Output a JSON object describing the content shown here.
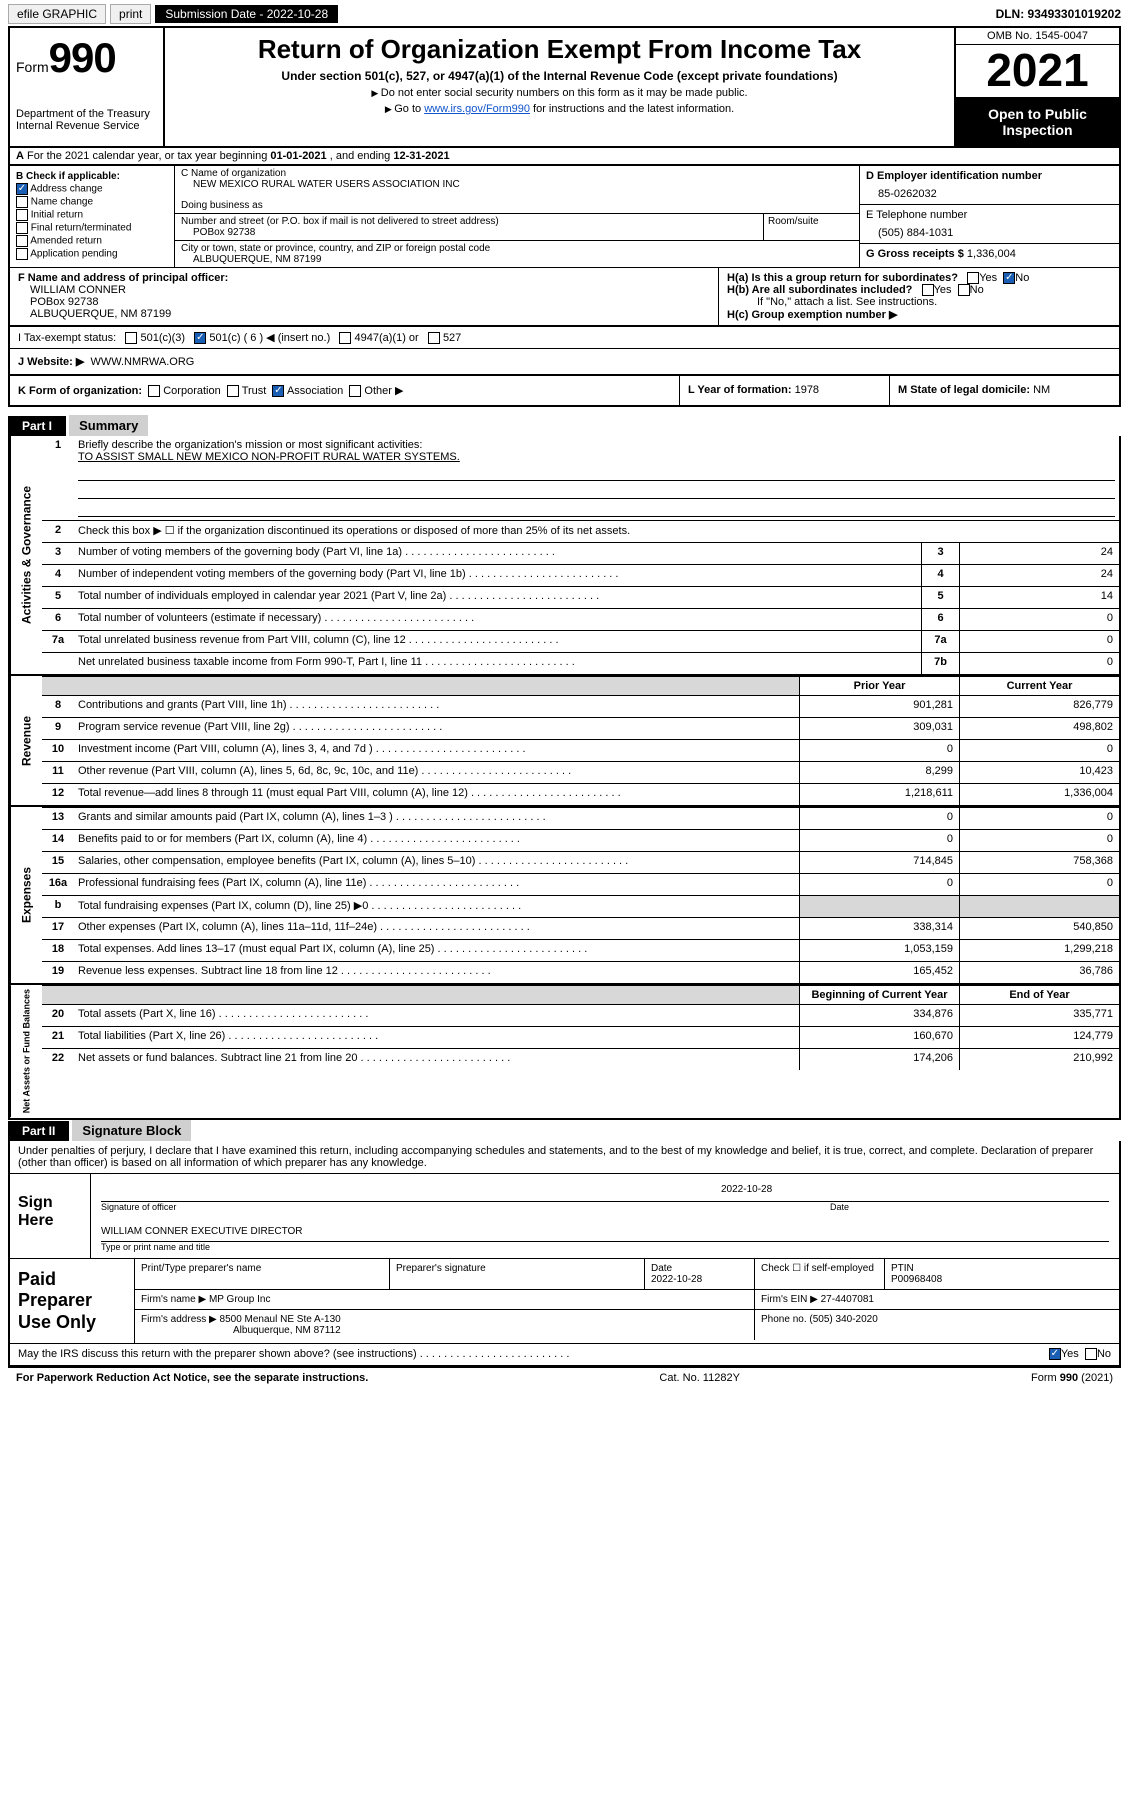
{
  "topbar": {
    "efile": "efile GRAPHIC",
    "print": "print",
    "submission": "Submission Date - 2022-10-28",
    "dln": "DLN: 93493301019202"
  },
  "header": {
    "form": "Form",
    "formno": "990",
    "title": "Return of Organization Exempt From Income Tax",
    "sub": "Under section 501(c), 527, or 4947(a)(1) of the Internal Revenue Code (except private foundations)",
    "note1": "Do not enter social security numbers on this form as it may be made public.",
    "note2_pre": "Go to ",
    "note2_link": "www.irs.gov/Form990",
    "note2_post": " for instructions and the latest information.",
    "dept": "Department of the Treasury",
    "irs": "Internal Revenue Service",
    "omb": "OMB No. 1545-0047",
    "year": "2021",
    "open": "Open to Public Inspection"
  },
  "row_a": {
    "label": "A",
    "text_pre": "For the 2021 calendar year, or tax year beginning ",
    "begin": "01-01-2021",
    "mid": " , and ending ",
    "end": "12-31-2021"
  },
  "col_b": {
    "label": "B Check if applicable:",
    "items": [
      "Address change",
      "Name change",
      "Initial return",
      "Final return/terminated",
      "Amended return",
      "Application pending"
    ],
    "checked": [
      true,
      false,
      false,
      false,
      false,
      false
    ]
  },
  "col_c": {
    "name_label": "C Name of organization",
    "name": "NEW MEXICO RURAL WATER USERS ASSOCIATION INC",
    "dba_label": "Doing business as",
    "dba": "",
    "street_label": "Number and street (or P.O. box if mail is not delivered to street address)",
    "room_label": "Room/suite",
    "street": "POBox 92738",
    "city_label": "City or town, state or province, country, and ZIP or foreign postal code",
    "city": "ALBUQUERQUE, NM  87199"
  },
  "col_d": {
    "ein_label": "D Employer identification number",
    "ein": "85-0262032",
    "phone_label": "E Telephone number",
    "phone": "(505) 884-1031",
    "gross_label": "G Gross receipts $",
    "gross": "1,336,004"
  },
  "officer": {
    "f_label": "F Name and address of principal officer:",
    "name": "WILLIAM CONNER",
    "street": "POBox 92738",
    "city": "ALBUQUERQUE, NM  87199"
  },
  "h": {
    "a": "H(a)  Is this a group return for subordinates?",
    "a_yes": "Yes",
    "a_no": "No",
    "b": "H(b)  Are all subordinates included?",
    "b_yes": "Yes",
    "b_no": "No",
    "b_note": "If \"No,\" attach a list. See instructions.",
    "c": "H(c)  Group exemption number ▶"
  },
  "i": {
    "label": "I    Tax-exempt status:",
    "opts": [
      "501(c)(3)",
      "501(c) ( 6 ) ◀ (insert no.)",
      "4947(a)(1) or",
      "527"
    ]
  },
  "j": {
    "label": "J    Website: ▶",
    "url": "WWW.NMRWA.ORG"
  },
  "k": {
    "label": "K Form of organization:",
    "opts": [
      "Corporation",
      "Trust",
      "Association",
      "Other ▶"
    ],
    "checked": [
      false,
      false,
      true,
      false
    ]
  },
  "l": {
    "label": "L Year of formation:",
    "val": "1978"
  },
  "m": {
    "label": "M State of legal domicile:",
    "val": "NM"
  },
  "part1": {
    "hdr": "Part I",
    "title": "Summary"
  },
  "summary_lines": {
    "l1": {
      "num": "1",
      "text": "Briefly describe the organization's mission or most significant activities:",
      "mission": "TO ASSIST SMALL NEW MEXICO NON-PROFIT RURAL WATER SYSTEMS."
    },
    "l2": {
      "num": "2",
      "text": "Check this box ▶ ☐  if the organization discontinued its operations or disposed of more than 25% of its net assets."
    },
    "l3": {
      "num": "3",
      "text": "Number of voting members of the governing body (Part VI, line 1a)",
      "box": "3",
      "val": "24"
    },
    "l4": {
      "num": "4",
      "text": "Number of independent voting members of the governing body (Part VI, line 1b)",
      "box": "4",
      "val": "24"
    },
    "l5": {
      "num": "5",
      "text": "Total number of individuals employed in calendar year 2021 (Part V, line 2a)",
      "box": "5",
      "val": "14"
    },
    "l6": {
      "num": "6",
      "text": "Total number of volunteers (estimate if necessary)",
      "box": "6",
      "val": "0"
    },
    "l7a": {
      "num": "7a",
      "text": "Total unrelated business revenue from Part VIII, column (C), line 12",
      "box": "7a",
      "val": "0"
    },
    "l7b": {
      "num": "",
      "text": "Net unrelated business taxable income from Form 990-T, Part I, line 11",
      "box": "7b",
      "val": "0"
    }
  },
  "rev_hdr": {
    "prior": "Prior Year",
    "current": "Current Year"
  },
  "revenue": [
    {
      "num": "8",
      "text": "Contributions and grants (Part VIII, line 1h)",
      "prior": "901,281",
      "cur": "826,779"
    },
    {
      "num": "9",
      "text": "Program service revenue (Part VIII, line 2g)",
      "prior": "309,031",
      "cur": "498,802"
    },
    {
      "num": "10",
      "text": "Investment income (Part VIII, column (A), lines 3, 4, and 7d )",
      "prior": "0",
      "cur": "0"
    },
    {
      "num": "11",
      "text": "Other revenue (Part VIII, column (A), lines 5, 6d, 8c, 9c, 10c, and 11e)",
      "prior": "8,299",
      "cur": "10,423"
    },
    {
      "num": "12",
      "text": "Total revenue—add lines 8 through 11 (must equal Part VIII, column (A), line 12)",
      "prior": "1,218,611",
      "cur": "1,336,004"
    }
  ],
  "expenses": [
    {
      "num": "13",
      "text": "Grants and similar amounts paid (Part IX, column (A), lines 1–3 )",
      "prior": "0",
      "cur": "0"
    },
    {
      "num": "14",
      "text": "Benefits paid to or for members (Part IX, column (A), line 4)",
      "prior": "0",
      "cur": "0"
    },
    {
      "num": "15",
      "text": "Salaries, other compensation, employee benefits (Part IX, column (A), lines 5–10)",
      "prior": "714,845",
      "cur": "758,368"
    },
    {
      "num": "16a",
      "text": "Professional fundraising fees (Part IX, column (A), line 11e)",
      "prior": "0",
      "cur": "0"
    },
    {
      "num": "b",
      "text": "Total fundraising expenses (Part IX, column (D), line 25) ▶0",
      "prior": "",
      "cur": "",
      "greyprior": true,
      "greycur": true
    },
    {
      "num": "17",
      "text": "Other expenses (Part IX, column (A), lines 11a–11d, 11f–24e)",
      "prior": "338,314",
      "cur": "540,850"
    },
    {
      "num": "18",
      "text": "Total expenses. Add lines 13–17 (must equal Part IX, column (A), line 25)",
      "prior": "1,053,159",
      "cur": "1,299,218"
    },
    {
      "num": "19",
      "text": "Revenue less expenses. Subtract line 18 from line 12",
      "prior": "165,452",
      "cur": "36,786"
    }
  ],
  "net_hdr": {
    "begin": "Beginning of Current Year",
    "end": "End of Year"
  },
  "net": [
    {
      "num": "20",
      "text": "Total assets (Part X, line 16)",
      "prior": "334,876",
      "cur": "335,771"
    },
    {
      "num": "21",
      "text": "Total liabilities (Part X, line 26)",
      "prior": "160,670",
      "cur": "124,779"
    },
    {
      "num": "22",
      "text": "Net assets or fund balances. Subtract line 21 from line 20",
      "prior": "174,206",
      "cur": "210,992"
    }
  ],
  "vtabs": {
    "gov": "Activities & Governance",
    "rev": "Revenue",
    "exp": "Expenses",
    "net": "Net Assets or Fund Balances"
  },
  "part2": {
    "hdr": "Part II",
    "title": "Signature Block"
  },
  "sig": {
    "penalties": "Under penalties of perjury, I declare that I have examined this return, including accompanying schedules and statements, and to the best of my knowledge and belief, it is true, correct, and complete. Declaration of preparer (other than officer) is based on all information of which preparer has any knowledge.",
    "sign_here": "Sign Here",
    "sig_officer": "Signature of officer",
    "date_label": "Date",
    "date": "2022-10-28",
    "name": "WILLIAM CONNER  EXECUTIVE DIRECTOR",
    "name_caption": "Type or print name and title"
  },
  "paid": {
    "label": "Paid Preparer Use Only",
    "h": {
      "name": "Print/Type preparer's name",
      "sig": "Preparer's signature",
      "date": "Date",
      "check": "Check ☐ if self-employed",
      "ptin": "PTIN"
    },
    "date": "2022-10-28",
    "ptin": "P00968408",
    "firm_label": "Firm's name    ▶",
    "firm": "MP Group Inc",
    "ein_label": "Firm's EIN ▶",
    "ein": "27-4407081",
    "addr_label": "Firm's address ▶",
    "addr1": "8500 Menaul NE Ste A-130",
    "addr2": "Albuquerque, NM  87112",
    "phone_label": "Phone no.",
    "phone": "(505) 340-2020"
  },
  "discuss": {
    "text": "May the IRS discuss this return with the preparer shown above? (see instructions)",
    "yes": "Yes",
    "no": "No"
  },
  "footer": {
    "left": "For Paperwork Reduction Act Notice, see the separate instructions.",
    "mid": "Cat. No. 11282Y",
    "right": "Form 990 (2021)"
  }
}
